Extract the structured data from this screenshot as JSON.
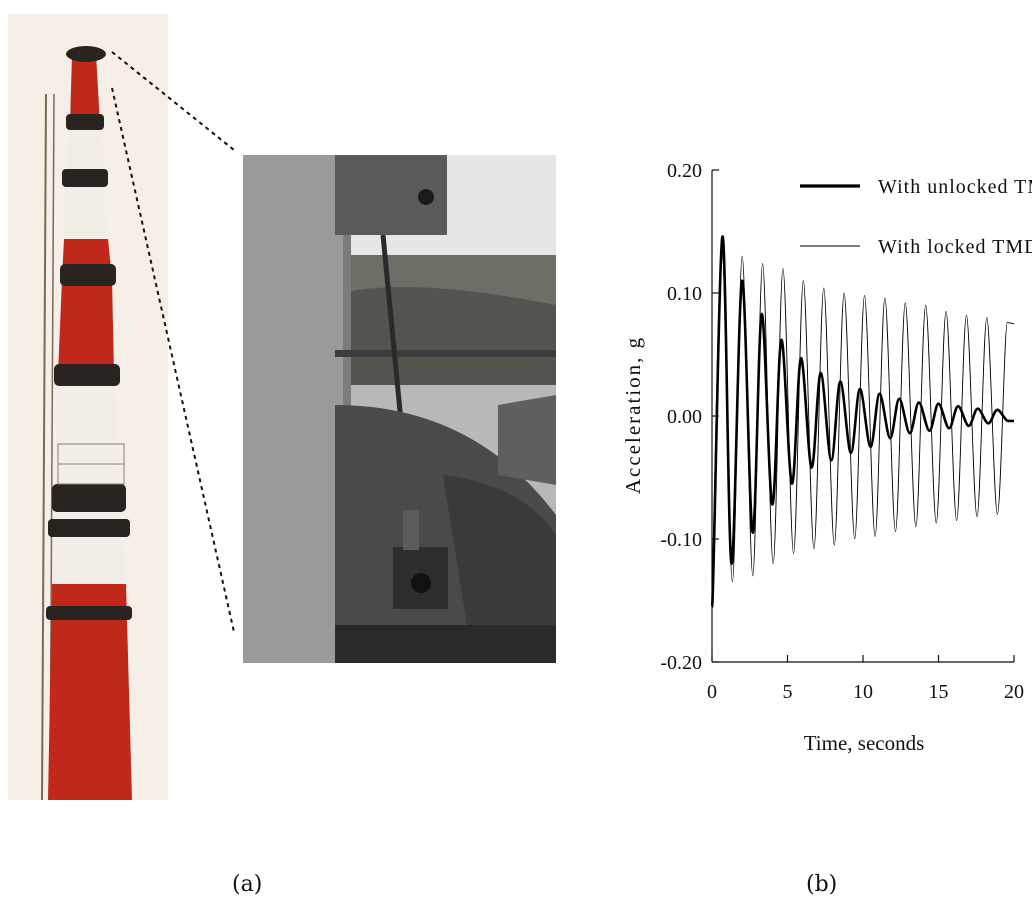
{
  "captions": {
    "left": "(a)",
    "right": "(b)"
  },
  "colors": {
    "chimney_red": "#c0281c",
    "chimney_white": "#f2ede6",
    "photo_gray": "#8a8a8a"
  },
  "chart_data": {
    "type": "line",
    "title": "",
    "xlabel": "Time, seconds",
    "ylabel": "Acceleration, g",
    "xlim": [
      0,
      20
    ],
    "ylim": [
      -0.2,
      0.2
    ],
    "xticks": [
      "0",
      "5",
      "10",
      "15",
      "20"
    ],
    "yticks": [
      "0.20",
      "0.10",
      "0.00",
      "-0.10",
      "-0.20"
    ],
    "grid": false,
    "legend_position": "top-right",
    "series": [
      {
        "name": "With unlocked TMD",
        "style": "thick",
        "color": "#000000",
        "x": [
          0.0,
          0.7,
          1.3,
          2.0,
          2.7,
          3.3,
          4.0,
          4.6,
          5.3,
          5.9,
          6.6,
          7.2,
          7.9,
          8.5,
          9.2,
          9.8,
          10.5,
          11.1,
          11.8,
          12.4,
          13.1,
          13.7,
          14.4,
          15.0,
          15.7,
          16.3,
          17.0,
          17.6,
          18.3,
          18.9,
          19.6,
          20.0
        ],
        "y": [
          -0.155,
          0.146,
          -0.12,
          0.11,
          -0.095,
          0.083,
          -0.072,
          0.062,
          -0.055,
          0.047,
          -0.042,
          0.035,
          -0.036,
          0.028,
          -0.03,
          0.022,
          -0.025,
          0.018,
          -0.018,
          0.014,
          -0.014,
          0.011,
          -0.012,
          0.01,
          -0.01,
          0.008,
          -0.008,
          0.006,
          -0.006,
          0.005,
          -0.004,
          -0.004
        ]
      },
      {
        "name": "With locked TMD",
        "style": "thin",
        "color": "#000000",
        "x": [
          0.0,
          0.65,
          1.35,
          2.0,
          2.7,
          3.35,
          4.05,
          4.7,
          5.4,
          6.05,
          6.75,
          7.4,
          8.1,
          8.75,
          9.45,
          10.1,
          10.8,
          11.45,
          12.15,
          12.8,
          13.5,
          14.15,
          14.85,
          15.5,
          16.2,
          16.85,
          17.55,
          18.2,
          18.9,
          19.55,
          20.0
        ],
        "y": [
          -0.13,
          0.14,
          -0.135,
          0.13,
          -0.13,
          0.124,
          -0.12,
          0.12,
          -0.112,
          0.11,
          -0.108,
          0.104,
          -0.105,
          0.1,
          -0.1,
          0.098,
          -0.098,
          0.096,
          -0.094,
          0.092,
          -0.09,
          0.09,
          -0.087,
          0.085,
          -0.085,
          0.082,
          -0.082,
          0.08,
          -0.08,
          0.076,
          0.075
        ]
      }
    ]
  }
}
